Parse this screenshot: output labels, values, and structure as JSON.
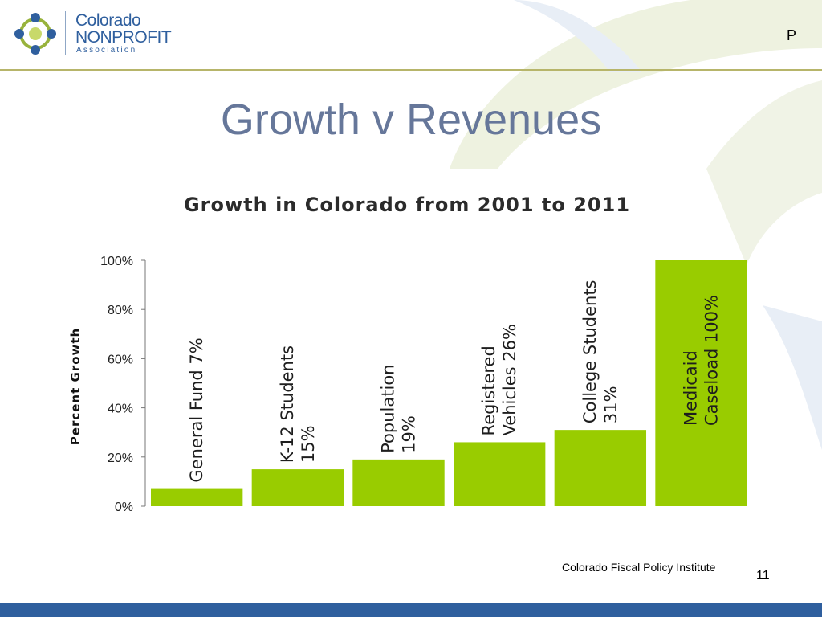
{
  "header": {
    "logo": {
      "line1": "Colorado",
      "line2": "NONPROFIT",
      "line3": "Association"
    },
    "corner_letter": "P"
  },
  "slide": {
    "title": "Growth v Revenues"
  },
  "footer": {
    "source": "Colorado Fiscal Policy Institute",
    "page_number": "11"
  },
  "colors": {
    "bar": "#99cc00",
    "title": "#66779a",
    "footer_bar": "#2f5f9e",
    "rule": "#b7b56a"
  },
  "chart_data": {
    "type": "bar",
    "title": "Growth in Colorado from 2001 to 2011",
    "xlabel": "",
    "ylabel": "Percent Growth",
    "ylim": [
      0,
      100
    ],
    "yticks": [
      "0%",
      "20%",
      "40%",
      "60%",
      "80%",
      "100%"
    ],
    "grid": false,
    "categories": [
      [
        "General Fund 7%"
      ],
      [
        "K-12 Students",
        "15%"
      ],
      [
        "Population",
        "19%"
      ],
      [
        "Registered",
        "Vehicles 26%"
      ],
      [
        "College Students",
        "31%"
      ],
      [
        "Medicaid",
        "Caseload 100%"
      ]
    ],
    "values": [
      7,
      15,
      19,
      26,
      31,
      100
    ]
  }
}
